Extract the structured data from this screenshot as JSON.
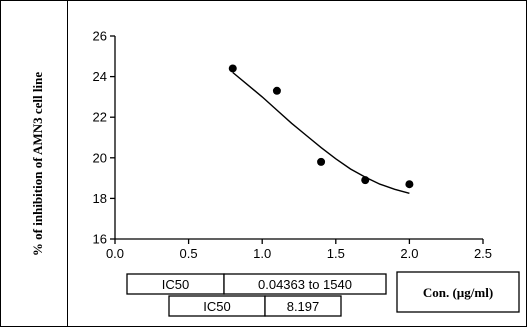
{
  "chart_data": {
    "type": "scatter",
    "title": "",
    "xlabel": "Con. (µg/ml)",
    "ylabel": "% of inhibition of AMN3 cell line",
    "xlim": [
      0.0,
      2.5
    ],
    "ylim": [
      16,
      26
    ],
    "x_ticks": [
      0.0,
      0.5,
      1.0,
      1.5,
      2.0,
      2.5
    ],
    "x_tick_labels": [
      "0.0",
      "0.5",
      "1.0",
      "1.5",
      "2.0",
      "2.5"
    ],
    "y_ticks": [
      16,
      18,
      20,
      22,
      24,
      26
    ],
    "y_tick_labels": [
      "16",
      "18",
      "20",
      "22",
      "24",
      "26"
    ],
    "grid": false,
    "series": [
      {
        "x": [
          0.8,
          1.1,
          1.4,
          1.7,
          2.0
        ],
        "y": [
          24.4,
          23.3,
          19.8,
          18.9,
          18.7
        ]
      }
    ],
    "fit_curve": {
      "x": [
        0.8,
        0.9,
        1.0,
        1.1,
        1.2,
        1.3,
        1.4,
        1.5,
        1.6,
        1.7,
        1.8,
        1.9,
        2.0
      ],
      "y": [
        24.2,
        23.6,
        23.0,
        22.35,
        21.7,
        21.1,
        20.5,
        19.95,
        19.45,
        19.05,
        18.7,
        18.45,
        18.25
      ]
    }
  },
  "results_table": {
    "row1_label": "IC50",
    "row1_value": "0.04363 to 1540",
    "row2_label": "IC50",
    "row2_value": "8.197"
  }
}
